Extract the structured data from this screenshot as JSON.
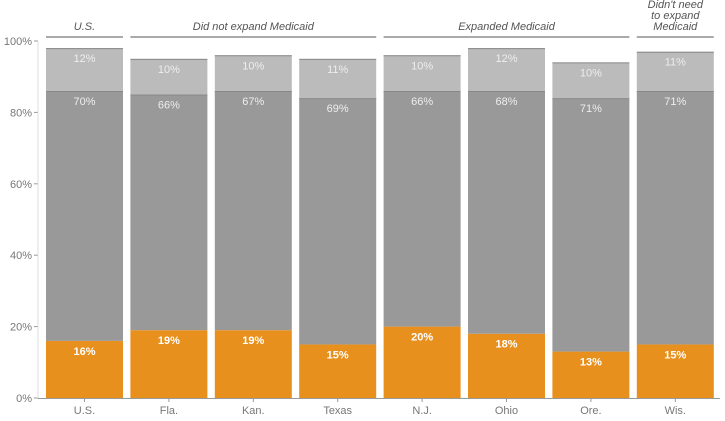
{
  "chart_data": {
    "type": "bar",
    "stacked": true,
    "categories": [
      "U.S.",
      "Fla.",
      "Kan.",
      "Texas",
      "N.J.",
      "Ohio",
      "Ore.",
      "Wis."
    ],
    "series": [
      {
        "values": [
          16,
          19,
          19,
          15,
          20,
          18,
          13,
          15
        ],
        "color": "#e8901d",
        "labels": [
          "16%",
          "19%",
          "19%",
          "15%",
          "20%",
          "18%",
          "13%",
          "15%"
        ]
      },
      {
        "values": [
          70,
          66,
          67,
          69,
          66,
          68,
          71,
          71
        ],
        "color": "#999999",
        "labels": [
          "70%",
          "66%",
          "67%",
          "69%",
          "66%",
          "68%",
          "71%",
          "71%"
        ]
      },
      {
        "values": [
          12,
          10,
          10,
          11,
          10,
          12,
          10,
          11
        ],
        "color": "#bbbbbb",
        "labels": [
          "12%",
          "10%",
          "10%",
          "11%",
          "10%",
          "12%",
          "10%",
          "11%"
        ]
      }
    ],
    "groups": [
      {
        "label": "U.S.",
        "categories": [
          "U.S."
        ]
      },
      {
        "label": "Did not expand Medicaid",
        "categories": [
          "Fla.",
          "Kan.",
          "Texas"
        ]
      },
      {
        "label": "Expanded Medicaid",
        "categories": [
          "N.J.",
          "Ohio",
          "Ore."
        ]
      },
      {
        "label": "Didn't need to expand Medicaid",
        "categories": [
          "Wis."
        ]
      }
    ],
    "yticks": [
      "0%",
      "20%",
      "40%",
      "60%",
      "80%",
      "100%"
    ],
    "ylim": [
      0,
      100
    ],
    "grid": false,
    "title": "",
    "xlabel": "",
    "ylabel": ""
  }
}
